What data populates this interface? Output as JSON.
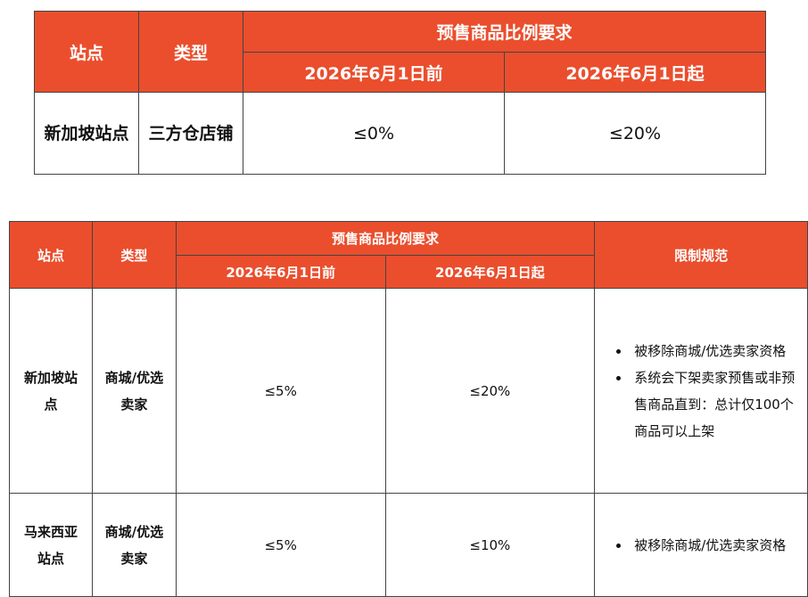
{
  "tables": [
    {
      "header": {
        "site": "站点",
        "type": "类型",
        "group": "预售商品比例要求",
        "before": "2026年6月1日前",
        "after": "2026年6月1日起"
      },
      "rows": [
        [
          "新加坡站点",
          "三方仓店铺",
          "≤0%",
          "≤20%"
        ]
      ]
    },
    {
      "header": {
        "site": "站点",
        "type": "类型",
        "group": "预售商品比例要求",
        "before": "2026年6月1日前",
        "after": "2026年6月1日起",
        "limit": "限制规范"
      },
      "rows": [
        [
          "新加坡站点",
          "商城/优选卖家",
          "≤5%",
          "≤20%",
          [
            "被移除商城/优选卖家资格",
            "系统会下架卖家预售或非预售商品直到：总计仅100个商品可以上架"
          ]
        ],
        [
          "马来西亚站点",
          "商城/优选卖家",
          "≤5%",
          "≤10%",
          [
            "被移除商城/优选卖家资格"
          ]
        ]
      ]
    }
  ]
}
